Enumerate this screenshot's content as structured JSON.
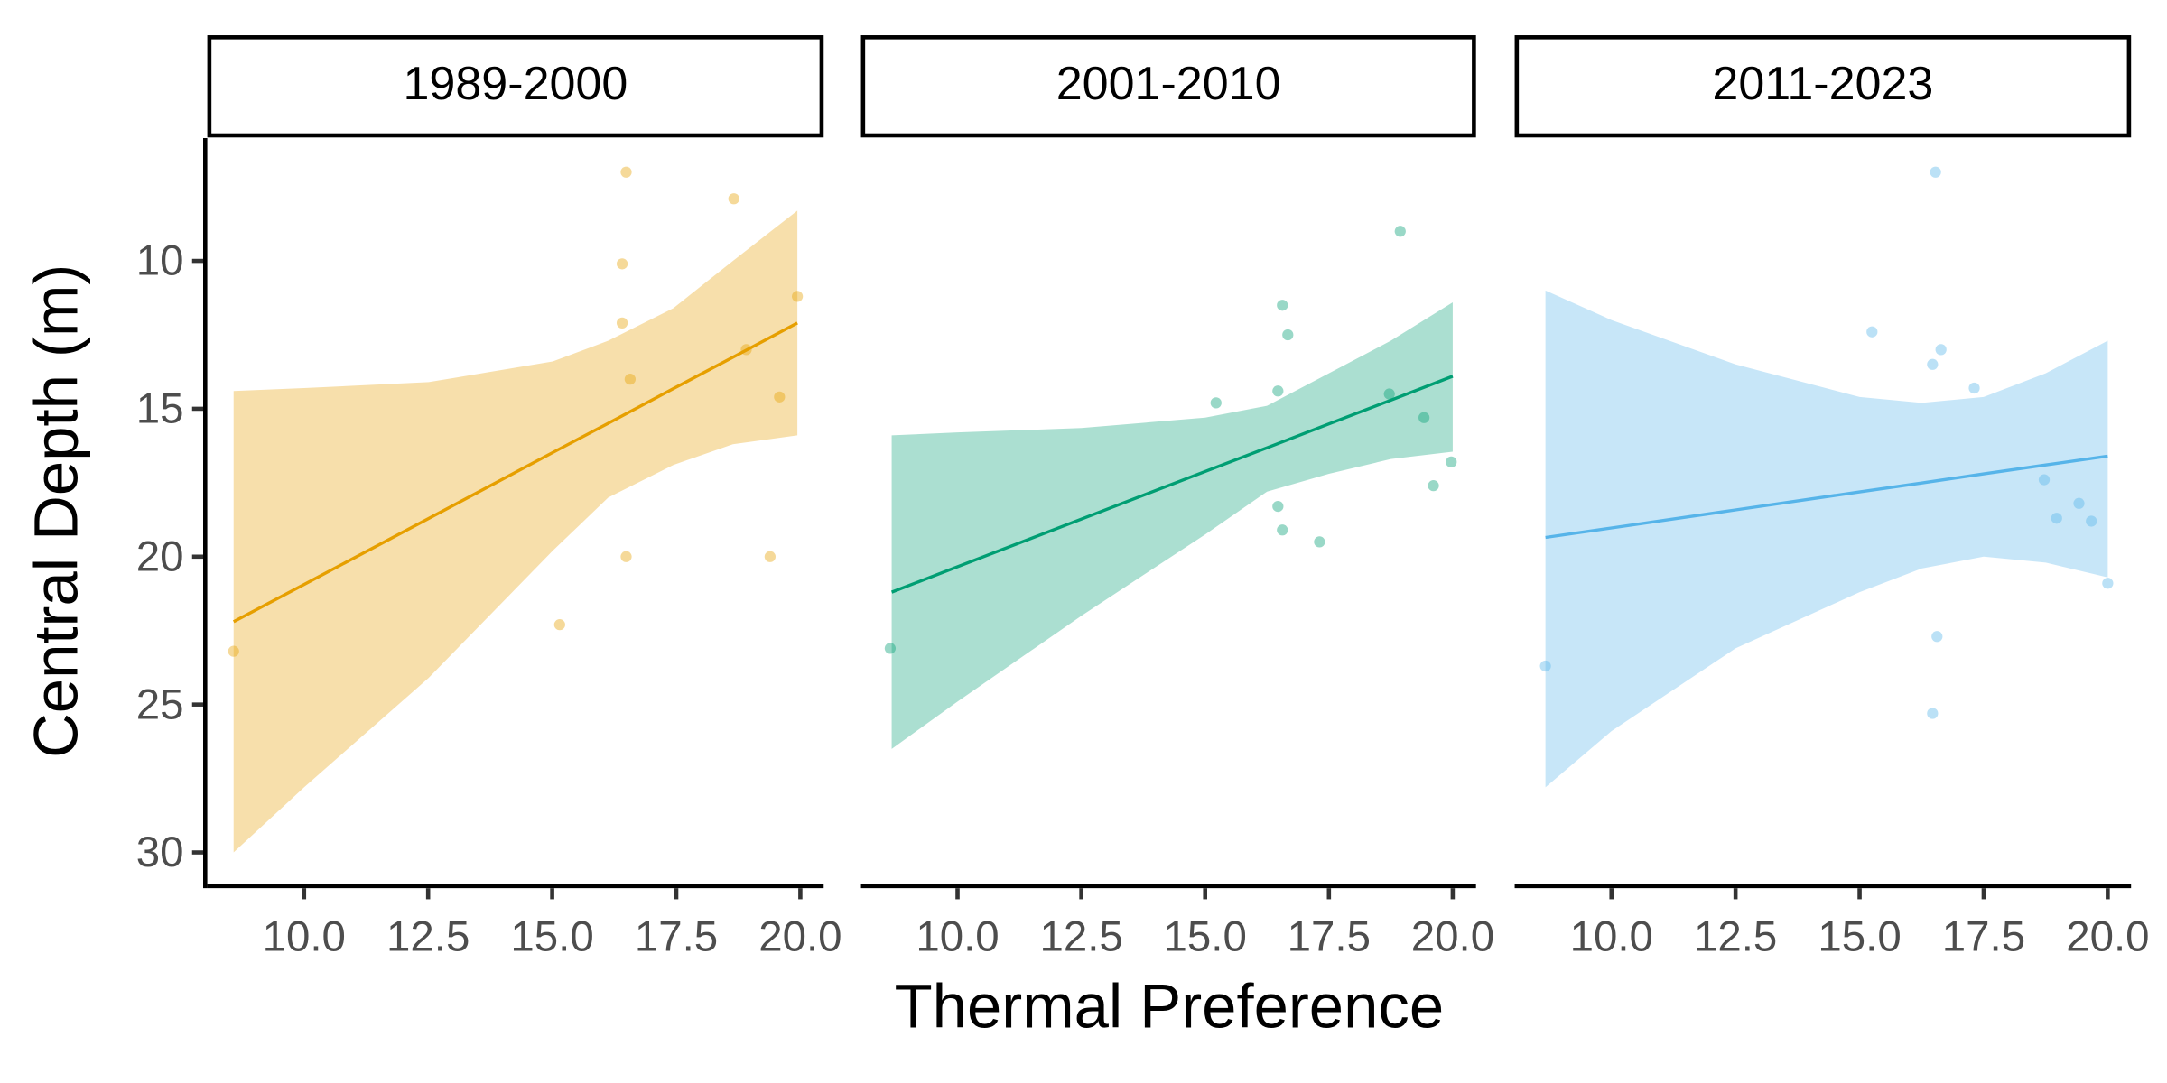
{
  "chart_data": {
    "type": "scatter",
    "x_label": "Thermal Preference",
    "y_label": "Central Depth (m)",
    "xlim": [
      8.05,
      20.47
    ],
    "ylim": [
      5.85,
      31.07
    ],
    "y_reversed": true,
    "xticks": [
      {
        "value": 10,
        "label": "10.0"
      },
      {
        "value": 12.5,
        "label": "12.5"
      },
      {
        "value": 15,
        "label": "15.0"
      },
      {
        "value": 17.5,
        "label": "17.5"
      },
      {
        "value": 20,
        "label": "20.0"
      }
    ],
    "yticks": [
      10,
      15,
      20,
      25,
      30
    ],
    "facets": [
      {
        "title": "1989-2000",
        "color": "#E69F00",
        "x": [
          8.58,
          16.49,
          18.66,
          16.41,
          16.41,
          16.57,
          19.94,
          18.91,
          19.58,
          16.49,
          19.39,
          15.15
        ],
        "y": [
          23.2,
          7.0,
          7.9,
          10.1,
          12.1,
          14.0,
          11.2,
          13.0,
          14.6,
          20.0,
          20.0,
          22.3
        ],
        "fit": {
          "x": [
            8.58,
            10,
            12.51,
            15.01,
            16.13,
            17.44,
            18.64,
            19.94
          ],
          "y": [
            22.2,
            20.94,
            18.71,
            16.48,
            15.49,
            14.32,
            13.26,
            12.1
          ],
          "lower": [
            14.4,
            14.3,
            14.1,
            13.4,
            12.7,
            11.6,
            10.0,
            8.3
          ],
          "upper": [
            30.0,
            27.8,
            24.1,
            19.8,
            18.0,
            16.9,
            16.2,
            15.9
          ]
        }
      },
      {
        "title": "2001-2010",
        "color": "#009E73",
        "x": [
          8.64,
          15.22,
          16.56,
          16.67,
          16.47,
          16.47,
          16.56,
          17.31,
          18.94,
          18.72,
          19.42,
          19.97,
          19.61
        ],
        "y": [
          23.1,
          14.8,
          11.5,
          12.5,
          14.4,
          18.3,
          19.1,
          19.5,
          9.0,
          14.5,
          15.3,
          16.8,
          17.6
        ],
        "fit": {
          "x": [
            8.67,
            10,
            12.5,
            15,
            16.25,
            17.5,
            18.75,
            20
          ],
          "y": [
            21.2,
            20.34,
            18.73,
            17.12,
            16.32,
            15.51,
            14.71,
            13.9
          ],
          "lower": [
            15.9,
            15.8,
            15.65,
            15.3,
            14.9,
            13.8,
            12.7,
            11.4
          ],
          "upper": [
            26.5,
            24.9,
            22.0,
            19.25,
            17.8,
            17.2,
            16.7,
            16.45
          ]
        }
      },
      {
        "title": "2011-2023",
        "color": "#56B4E9",
        "x": [
          8.67,
          16.53,
          15.25,
          16.64,
          16.47,
          17.31,
          18.72,
          18.97,
          19.42,
          19.67,
          20.0,
          16.56,
          16.47
        ],
        "y": [
          23.7,
          7.0,
          12.4,
          13.0,
          13.5,
          14.3,
          17.4,
          18.7,
          18.2,
          18.8,
          20.9,
          22.7,
          25.3
        ],
        "fit": {
          "x": [
            8.67,
            10,
            12.5,
            15,
            16.25,
            17.5,
            18.75,
            20
          ],
          "y": [
            19.35,
            19.03,
            18.42,
            17.81,
            17.51,
            17.2,
            16.9,
            16.6
          ],
          "lower": [
            11.0,
            12.0,
            13.5,
            14.6,
            14.8,
            14.6,
            13.8,
            12.7
          ],
          "upper": [
            27.8,
            25.9,
            23.1,
            21.2,
            20.4,
            20.0,
            20.2,
            20.7
          ]
        }
      }
    ]
  }
}
